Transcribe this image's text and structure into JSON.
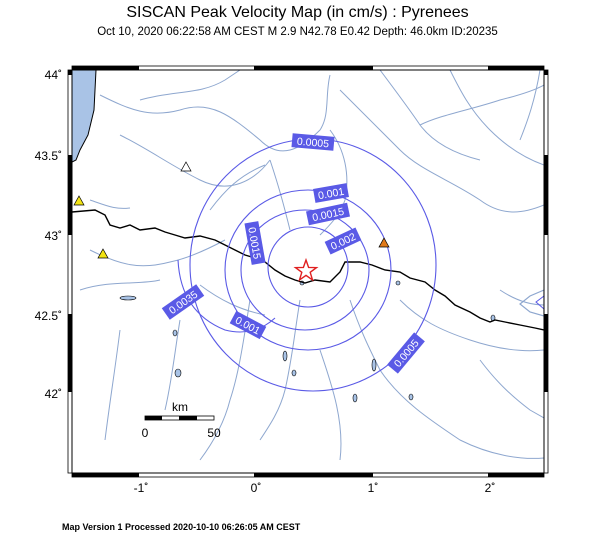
{
  "title": "SISCAN Peak Velocity Map (in cm/s) : Pyrenees",
  "subtitle": "Oct 10, 2020 06:22:58 AM CEST   M 2.9   N42.78 E0.42   Depth: 46.0km   ID:20235",
  "footer": "Map Version 1 Processed 2020-10-10 06:26:05 AM CEST",
  "y_ticks": [
    "44˚",
    "43.5˚",
    "43˚",
    "42.5˚",
    "42˚"
  ],
  "x_ticks": [
    "-1˚",
    "0˚",
    "1˚",
    "2˚"
  ],
  "scale": {
    "title": "km",
    "left": "0",
    "right": "50"
  },
  "contour_labels": [
    "0.0005",
    "0.001",
    "0.0015",
    "0.002",
    "0.0015",
    "0.0035",
    "0.001",
    "0.0005"
  ],
  "colors": {
    "contour": "#5a5ae6",
    "label_bg": "#5a5ae6",
    "river": "#8ea7cf",
    "border": "#000000",
    "sea": "#a9c3e6",
    "epicenter": "#e02020",
    "station_yellow": "#f2e313",
    "station_orange": "#e07a1b",
    "station_white": "#ffffff"
  },
  "epicenter": {
    "lat": 42.78,
    "lon": 0.42,
    "icon": "star-icon"
  },
  "stations": [
    {
      "icon": "triangle-icon",
      "color": "white"
    },
    {
      "icon": "triangle-icon",
      "color": "yellow"
    },
    {
      "icon": "triangle-icon",
      "color": "yellow"
    },
    {
      "icon": "triangle-icon",
      "color": "orange"
    }
  ]
}
